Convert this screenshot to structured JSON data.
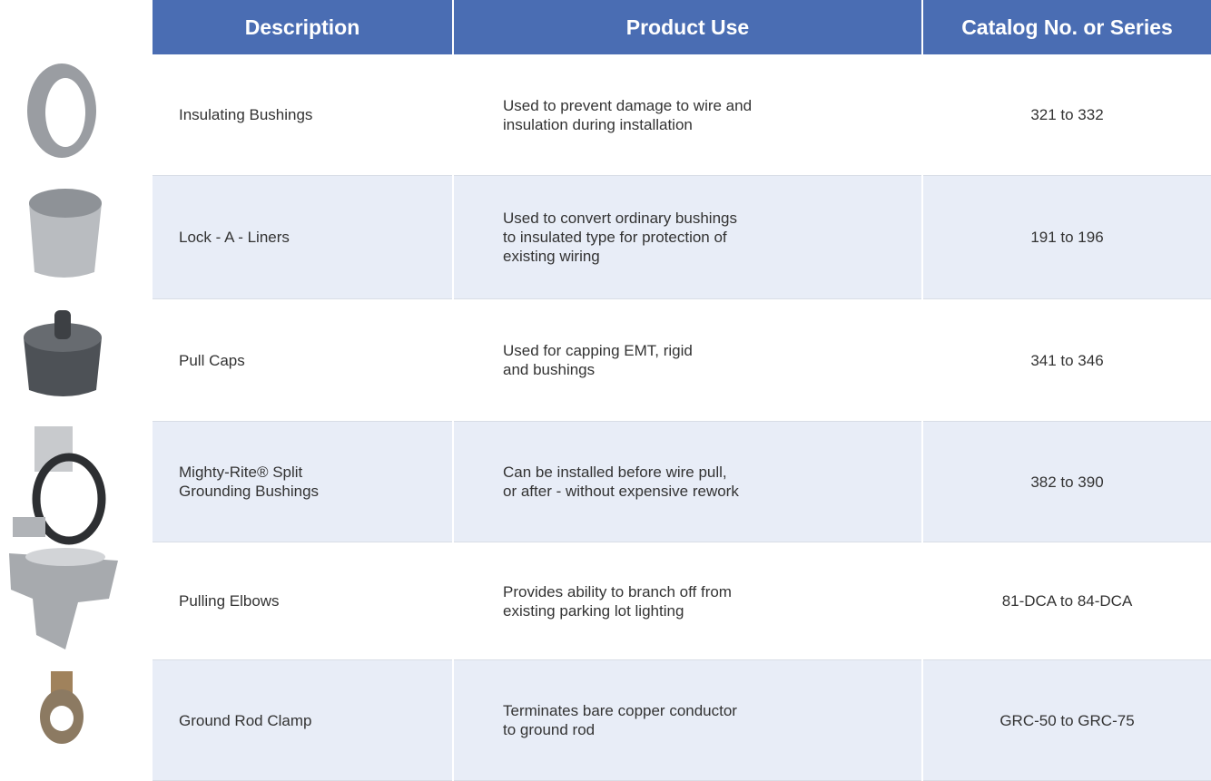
{
  "table": {
    "header": [
      "Description",
      "Product Use",
      "Catalog No. or Series"
    ],
    "rows": [
      {
        "description": [
          "Insulating Bushings"
        ],
        "use": [
          "Used to prevent damage to wire and",
          "insulation during installation"
        ],
        "catalog": "321 to 332"
      },
      {
        "description": [
          "Lock - A - Liners"
        ],
        "use": [
          "Used to convert ordinary bushings",
          "to insulated type for protection of",
          "existing wiring"
        ],
        "catalog": "191 to 196"
      },
      {
        "description": [
          "Pull Caps"
        ],
        "use": [
          "Used for capping EMT, rigid",
          "and bushings"
        ],
        "catalog": "341 to 346"
      },
      {
        "description": [
          "Mighty-Rite® Split",
          "Grounding Bushings"
        ],
        "use": [
          "Can be installed before wire pull,",
          "or after - without expensive rework"
        ],
        "catalog": "382 to 390"
      },
      {
        "description": [
          "Pulling Elbows"
        ],
        "use": [
          "Provides ability to branch off from",
          "existing parking lot lighting"
        ],
        "catalog": "81-DCA to 84-DCA"
      },
      {
        "description": [
          "Ground Rod Clamp"
        ],
        "use": [
          "Terminates bare copper conductor",
          "to ground rod"
        ],
        "catalog": "GRC-50 to GRC-75"
      }
    ]
  }
}
